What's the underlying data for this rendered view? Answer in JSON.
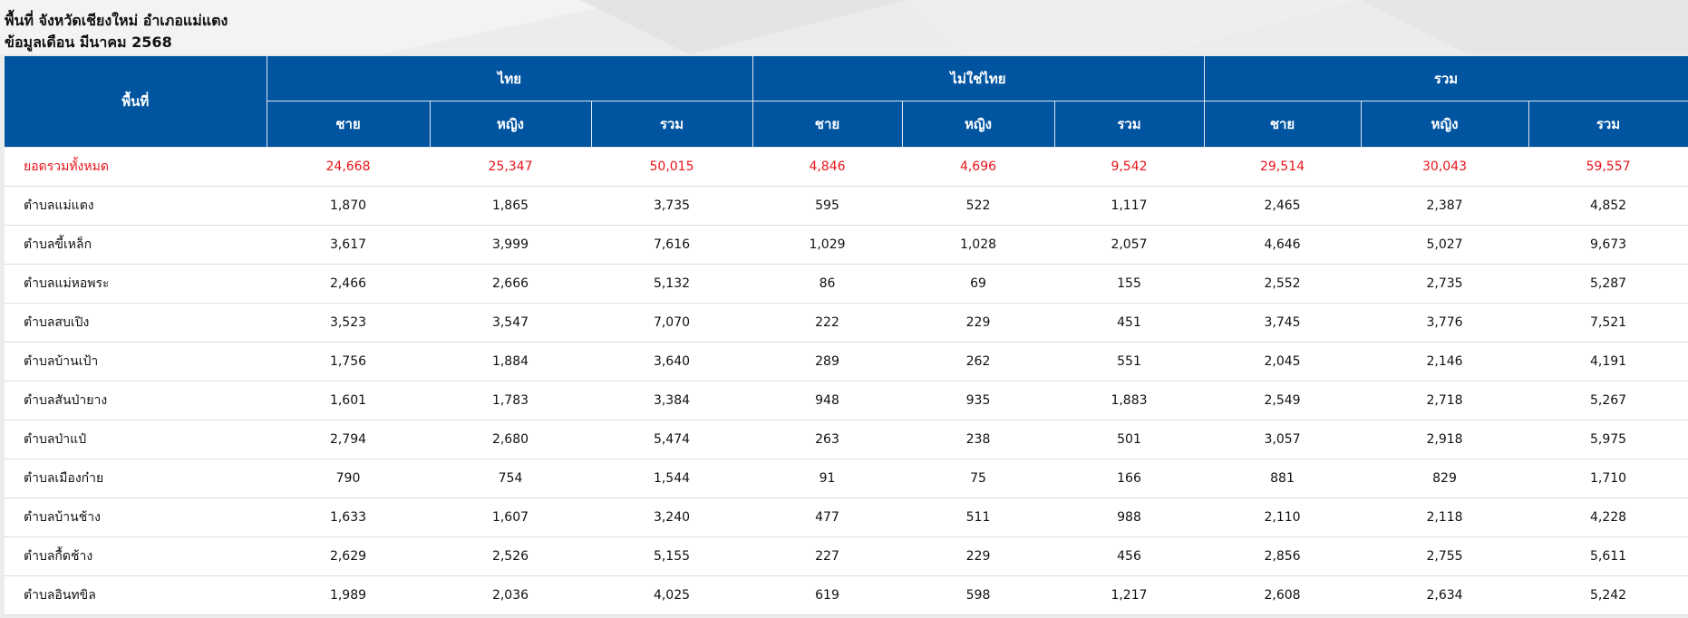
{
  "heading": {
    "line1": "พื้นที่ จังหวัดเชียงใหม่ อำเภอแม่แตง",
    "line2": "ข้อมูลเดือน มีนาคม 2568"
  },
  "table": {
    "area_header": "พื้นที่",
    "groups": [
      "ไทย",
      "ไม่ใช่ไทย",
      "รวม"
    ],
    "sub_headers": [
      "ชาย",
      "หญิง",
      "รวม",
      "ชาย",
      "หญิง",
      "รวม",
      "ชาย",
      "หญิง",
      "รวม"
    ],
    "rows": [
      {
        "area": "ยอดรวมทั้งหมด",
        "values": [
          "24,668",
          "25,347",
          "50,015",
          "4,846",
          "4,696",
          "9,542",
          "29,514",
          "30,043",
          "59,557"
        ]
      },
      {
        "area": "ตำบลแม่แตง",
        "values": [
          "1,870",
          "1,865",
          "3,735",
          "595",
          "522",
          "1,117",
          "2,465",
          "2,387",
          "4,852"
        ]
      },
      {
        "area": "ตำบลขี้เหล็ก",
        "values": [
          "3,617",
          "3,999",
          "7,616",
          "1,029",
          "1,028",
          "2,057",
          "4,646",
          "5,027",
          "9,673"
        ]
      },
      {
        "area": "ตำบลแม่หอพระ",
        "values": [
          "2,466",
          "2,666",
          "5,132",
          "86",
          "69",
          "155",
          "2,552",
          "2,735",
          "5,287"
        ]
      },
      {
        "area": "ตำบลสบเปิง",
        "values": [
          "3,523",
          "3,547",
          "7,070",
          "222",
          "229",
          "451",
          "3,745",
          "3,776",
          "7,521"
        ]
      },
      {
        "area": "ตำบลบ้านเป้า",
        "values": [
          "1,756",
          "1,884",
          "3,640",
          "289",
          "262",
          "551",
          "2,045",
          "2,146",
          "4,191"
        ]
      },
      {
        "area": "ตำบลสันป่ายาง",
        "values": [
          "1,601",
          "1,783",
          "3,384",
          "948",
          "935",
          "1,883",
          "2,549",
          "2,718",
          "5,267"
        ]
      },
      {
        "area": "ตำบลป่าแป๋",
        "values": [
          "2,794",
          "2,680",
          "5,474",
          "263",
          "238",
          "501",
          "3,057",
          "2,918",
          "5,975"
        ]
      },
      {
        "area": "ตำบลเมืองก๋าย",
        "values": [
          "790",
          "754",
          "1,544",
          "91",
          "75",
          "166",
          "881",
          "829",
          "1,710"
        ]
      },
      {
        "area": "ตำบลบ้านช้าง",
        "values": [
          "1,633",
          "1,607",
          "3,240",
          "477",
          "511",
          "988",
          "2,110",
          "2,118",
          "4,228"
        ]
      },
      {
        "area": "ตำบลกื้ดช้าง",
        "values": [
          "2,629",
          "2,526",
          "5,155",
          "227",
          "229",
          "456",
          "2,856",
          "2,755",
          "5,611"
        ]
      },
      {
        "area": "ตำบลอินทขิล",
        "values": [
          "1,989",
          "2,036",
          "4,025",
          "619",
          "598",
          "1,217",
          "2,608",
          "2,634",
          "5,242"
        ]
      }
    ]
  }
}
